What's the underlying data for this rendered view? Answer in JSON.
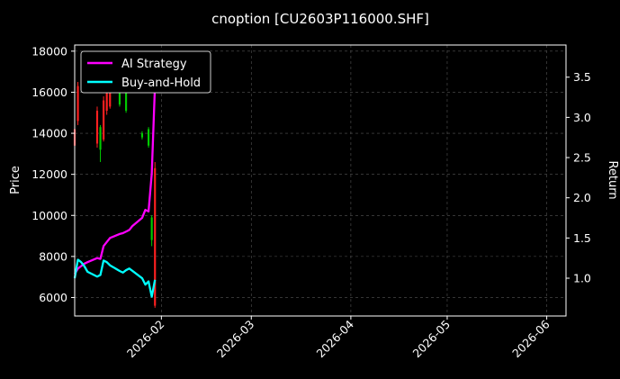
{
  "chart_data": {
    "type": "line",
    "title": "cnoption [CU2603P116000.SHF]",
    "xlabel": "",
    "ylabel_left": "Price",
    "ylabel_right": "Return",
    "xlim": [
      "2026-01-05",
      "2026-06-07"
    ],
    "ylim_left": [
      5100,
      18300
    ],
    "ylim_right": [
      0.53,
      3.9
    ],
    "x_ticks": [
      "2026-02",
      "2026-03",
      "2026-04",
      "2026-05",
      "2026-06"
    ],
    "y_ticks_left": [
      6000,
      8000,
      10000,
      12000,
      14000,
      16000,
      18000
    ],
    "y_ticks_right": [
      1.0,
      1.5,
      2.0,
      2.5,
      3.0,
      3.5
    ],
    "grid": true,
    "legend_placement": "top-left",
    "colors": {
      "background": "#000000",
      "up_candle": "#00cc00",
      "down_candle": "#ff2020",
      "ai_strategy": "#ff00ff",
      "buy_and_hold": "#00ffff",
      "grid": "#555555"
    },
    "candles": [
      {
        "date": "2026-01-05",
        "open": 14200,
        "close": 13400,
        "high": 14400,
        "low": 13200
      },
      {
        "date": "2026-01-06",
        "open": 16300,
        "close": 14600,
        "high": 16500,
        "low": 14400
      },
      {
        "date": "2026-01-12",
        "open": 15100,
        "close": 13500,
        "high": 15300,
        "low": 13300
      },
      {
        "date": "2026-01-13",
        "open": 13200,
        "close": 14300,
        "high": 14400,
        "low": 12600
      },
      {
        "date": "2026-01-14",
        "open": 15600,
        "close": 13700,
        "high": 15800,
        "low": 13600
      },
      {
        "date": "2026-01-15",
        "open": 16000,
        "close": 15100,
        "high": 16200,
        "low": 14900
      },
      {
        "date": "2026-01-16",
        "open": 16300,
        "close": 15300,
        "high": 16500,
        "low": 15200
      },
      {
        "date": "2026-01-19",
        "open": 15400,
        "close": 16500,
        "high": 16700,
        "low": 15300
      },
      {
        "date": "2026-01-21",
        "open": 15100,
        "close": 16300,
        "high": 16600,
        "low": 15000
      },
      {
        "date": "2026-01-26",
        "open": 13800,
        "close": 14000,
        "high": 14100,
        "low": 13700
      },
      {
        "date": "2026-01-28",
        "open": 13400,
        "close": 14200,
        "high": 14300,
        "low": 13300
      },
      {
        "date": "2026-01-29",
        "open": 8800,
        "close": 9900,
        "high": 10000,
        "low": 8500
      },
      {
        "date": "2026-01-30",
        "open": 12300,
        "close": 5600,
        "high": 12600,
        "low": 5500
      }
    ],
    "series": [
      {
        "name": "AI Strategy",
        "x": [
          "2026-01-05",
          "2026-01-06",
          "2026-01-07",
          "2026-01-08",
          "2026-01-09",
          "2026-01-12",
          "2026-01-13",
          "2026-01-14",
          "2026-01-15",
          "2026-01-16",
          "2026-01-19",
          "2026-01-20",
          "2026-01-21",
          "2026-01-22",
          "2026-01-23",
          "2026-01-26",
          "2026-01-27",
          "2026-01-28",
          "2026-01-29",
          "2026-01-30"
        ],
        "values": [
          1.05,
          1.12,
          1.15,
          1.18,
          1.2,
          1.25,
          1.24,
          1.4,
          1.45,
          1.5,
          1.55,
          1.56,
          1.58,
          1.6,
          1.65,
          1.75,
          1.85,
          1.83,
          2.3,
          3.4
        ]
      },
      {
        "name": "Buy-and-Hold",
        "x": [
          "2026-01-05",
          "2026-01-06",
          "2026-01-07",
          "2026-01-08",
          "2026-01-09",
          "2026-01-12",
          "2026-01-13",
          "2026-01-14",
          "2026-01-15",
          "2026-01-16",
          "2026-01-19",
          "2026-01-20",
          "2026-01-21",
          "2026-01-22",
          "2026-01-23",
          "2026-01-26",
          "2026-01-27",
          "2026-01-28",
          "2026-01-29",
          "2026-01-30"
        ],
        "values": [
          1.0,
          1.23,
          1.2,
          1.15,
          1.08,
          1.02,
          1.04,
          1.22,
          1.2,
          1.16,
          1.09,
          1.07,
          1.1,
          1.12,
          1.09,
          1.0,
          0.92,
          0.96,
          0.77,
          0.98
        ]
      }
    ]
  }
}
